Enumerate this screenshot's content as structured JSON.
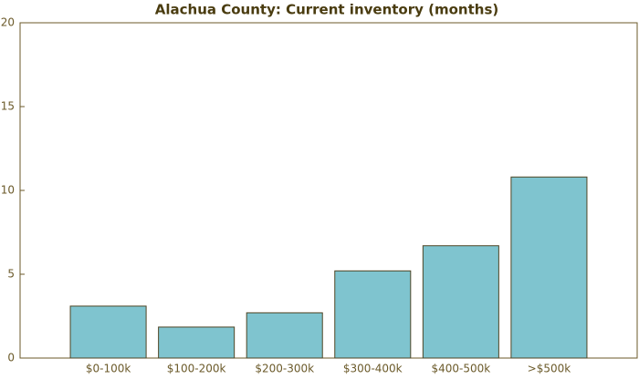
{
  "chart_data": {
    "type": "bar",
    "title": "Alachua County: Current inventory (months)",
    "categories": [
      "$0-100k",
      "$100-200k",
      "$200-300k",
      "$300-400k",
      "$400-500k",
      ">$500k"
    ],
    "values": [
      3.1,
      1.85,
      2.7,
      5.2,
      6.7,
      10.8
    ],
    "color": "#7fc4cf",
    "edge_color": "#4f4626",
    "ylim": [
      0,
      20
    ],
    "yticks": [
      0,
      5,
      10,
      15,
      20
    ],
    "grid": false
  }
}
